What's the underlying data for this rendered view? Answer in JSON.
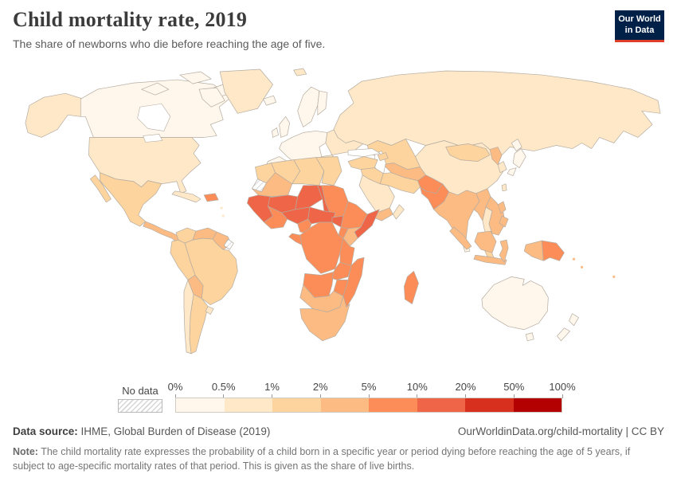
{
  "header": {
    "title": "Child mortality rate, 2019",
    "subtitle": "The share of newborns who die before reaching the age of five.",
    "logo": {
      "line1": "Our World",
      "line2": "in Data",
      "bg_color": "#002147",
      "accent_color": "#dc3e2a"
    }
  },
  "footer": {
    "source_label": "Data source:",
    "source_text": " IHME, Global Burden of Disease (2019)",
    "link_text": "OurWorldinData.org/child-mortality | CC BY",
    "note_label": "Note:",
    "note_text": " The child mortality rate expresses the probability of a child born in a specific year or period dying before reaching the age of 5 years, if subject to age-specific mortality rates of that period. This is given as the share of live births."
  },
  "chart_data": {
    "type": "heatmap",
    "subtype": "world-choropleth-map",
    "title": "Child mortality rate, 2019",
    "subtitle": "The share of newborns who die before reaching the age of five.",
    "unit": "%",
    "legend_position": "bottom",
    "no_data_label": "No data",
    "bin_edges": [
      "0%",
      "0.5%",
      "1%",
      "2%",
      "5%",
      "10%",
      "20%",
      "50%",
      "100%"
    ],
    "bin_colors": [
      "#FFF7EC",
      "#FEE8C8",
      "#FDD49E",
      "#FDBB84",
      "#FC8D59",
      "#EF6548",
      "#D7301F",
      "#B30000"
    ],
    "regions": {
      "canada": 0,
      "arctic-islands": 0,
      "alaska": 1,
      "greenland": 1,
      "usa": 1,
      "mexico": 2,
      "baja-california": 2,
      "central-america": 3,
      "cuba": 1,
      "hispaniola": 4,
      "caribbean": 1,
      "colombia": 2,
      "venezuela": 3,
      "guyanas": 3,
      "french-guiana": "nodata",
      "brazil": 2,
      "peru": 2,
      "bolivia": 3,
      "chile": 1,
      "argentina": 2,
      "uruguay": 1,
      "iceland": 0,
      "uk": 0,
      "ireland": 0,
      "scandinavia": 0,
      "finland": 0,
      "svalbard": 1,
      "west-europe": 0,
      "spain": 0,
      "italy": 0,
      "balkans": 1,
      "east-europe": 1,
      "russia": 1,
      "kazakhstan": 2,
      "central-asia": 3,
      "turkey": 2,
      "caucasus": 2,
      "syria-iraq": 2,
      "iran": 2,
      "saudi-arabia": 1,
      "yemen": 3,
      "oman": 1,
      "afghanistan": 4,
      "pakistan": 4,
      "india": 3,
      "sri-lanka": 0,
      "china": 1,
      "mongolia": 2,
      "north-korea": 3,
      "south-korea": 1,
      "japan": 0,
      "taiwan": 1,
      "myanmar": 3,
      "thailand": 1,
      "indochina": 3,
      "malaysia": 2,
      "sumatra": 3,
      "borneo": 3,
      "java": 3,
      "sulawesi": 3,
      "philippines": 3,
      "west-new-guinea": 3,
      "papua-new-guinea": 4,
      "pacific-islands": 3,
      "australia": 0,
      "tasmania": 0,
      "new-zealand": 0,
      "morocco": 2,
      "western-sahara": "nodata",
      "algeria": 2,
      "libya": 2,
      "egypt": 2,
      "mauritania": 3,
      "senegal-guinea": 5,
      "mali": 5,
      "niger": 5,
      "chad": 5,
      "sudan": 4,
      "nigeria": 5,
      "west-africa-coast": 4,
      "cameroon": 4,
      "central-african-republic": 5,
      "south-sudan": 5,
      "ethiopia": 4,
      "somalia": 5,
      "kenya": 3,
      "uganda": 4,
      "dr-congo": 4,
      "gabon-congo": 4,
      "tanzania": 4,
      "angola": 4,
      "zambia": 4,
      "mozambique": 4,
      "zimbabwe": 4,
      "namibia-botswana": 3,
      "south-africa": 3,
      "madagascar": 4
    }
  }
}
